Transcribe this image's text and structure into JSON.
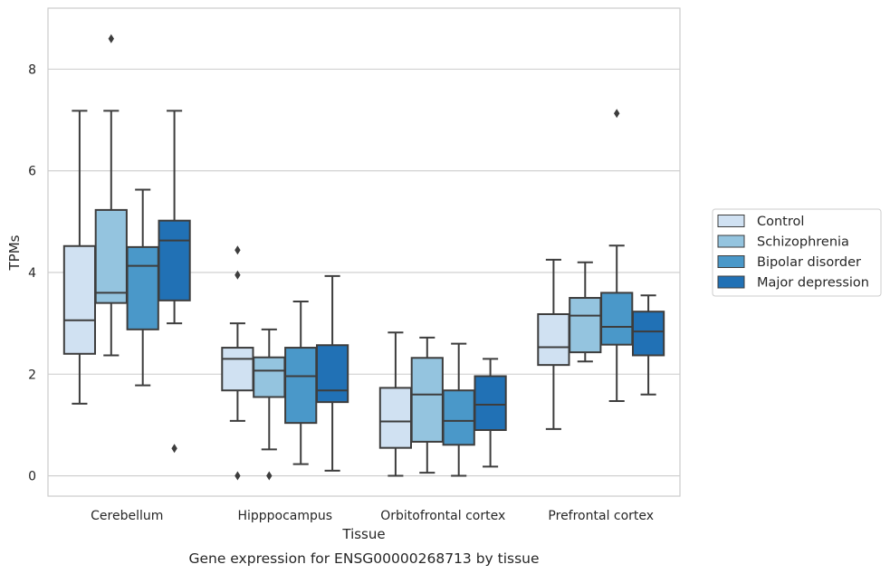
{
  "chart_data": {
    "type": "box",
    "title": "",
    "caption": "Gene expression for ENSG00000268713 by tissue",
    "xlabel": "Tissue",
    "ylabel": "TPMs",
    "ylim": [
      -0.4,
      9.2
    ],
    "yticks": [
      0,
      2,
      4,
      6,
      8
    ],
    "grid": "horizontal",
    "legend_position": "right",
    "categories": [
      "Cerebellum",
      "Hipppocampus",
      "Orbitofrontal cortex",
      "Prefrontal cortex"
    ],
    "series": [
      {
        "name": "Control",
        "color": "#d0e1f2",
        "boxes": [
          {
            "whisker_low": 1.42,
            "q1": 2.4,
            "median": 3.06,
            "q3": 4.52,
            "whisker_high": 7.18,
            "outliers": []
          },
          {
            "whisker_low": 1.08,
            "q1": 1.68,
            "median": 2.3,
            "q3": 2.52,
            "whisker_high": 3.0,
            "outliers": [
              4.44,
              3.95,
              0.0
            ]
          },
          {
            "whisker_low": 0.0,
            "q1": 0.55,
            "median": 1.07,
            "q3": 1.73,
            "whisker_high": 2.82,
            "outliers": []
          },
          {
            "whisker_low": 0.92,
            "q1": 2.18,
            "median": 2.53,
            "q3": 3.18,
            "whisker_high": 4.25,
            "outliers": []
          }
        ]
      },
      {
        "name": "Schizophrenia",
        "color": "#94c4df",
        "boxes": [
          {
            "whisker_low": 2.37,
            "q1": 3.4,
            "median": 3.6,
            "q3": 5.23,
            "whisker_high": 7.18,
            "outliers": [
              8.6
            ]
          },
          {
            "whisker_low": 0.52,
            "q1": 1.55,
            "median": 2.07,
            "q3": 2.33,
            "whisker_high": 2.88,
            "outliers": [
              0.0
            ]
          },
          {
            "whisker_low": 0.06,
            "q1": 0.67,
            "median": 1.6,
            "q3": 2.32,
            "whisker_high": 2.72,
            "outliers": []
          },
          {
            "whisker_low": 2.25,
            "q1": 2.43,
            "median": 3.15,
            "q3": 3.5,
            "whisker_high": 4.2,
            "outliers": []
          }
        ]
      },
      {
        "name": "Bipolar disorder",
        "color": "#4a98c9",
        "boxes": [
          {
            "whisker_low": 1.78,
            "q1": 2.88,
            "median": 4.13,
            "q3": 4.5,
            "whisker_high": 5.63,
            "outliers": []
          },
          {
            "whisker_low": 0.23,
            "q1": 1.04,
            "median": 1.96,
            "q3": 2.52,
            "whisker_high": 3.43,
            "outliers": []
          },
          {
            "whisker_low": 0.0,
            "q1": 0.61,
            "median": 1.08,
            "q3": 1.68,
            "whisker_high": 2.6,
            "outliers": []
          },
          {
            "whisker_low": 1.47,
            "q1": 2.58,
            "median": 2.93,
            "q3": 3.6,
            "whisker_high": 4.53,
            "outliers": [
              7.13
            ]
          }
        ]
      },
      {
        "name": "Major depression",
        "color": "#2171b5",
        "boxes": [
          {
            "whisker_low": 3.0,
            "q1": 3.45,
            "median": 4.63,
            "q3": 5.02,
            "whisker_high": 7.18,
            "outliers": [
              0.54
            ]
          },
          {
            "whisker_low": 0.1,
            "q1": 1.45,
            "median": 1.68,
            "q3": 2.57,
            "whisker_high": 3.93,
            "outliers": []
          },
          {
            "whisker_low": 0.18,
            "q1": 0.9,
            "median": 1.4,
            "q3": 1.96,
            "whisker_high": 2.3,
            "outliers": []
          },
          {
            "whisker_low": 1.6,
            "q1": 2.37,
            "median": 2.84,
            "q3": 3.23,
            "whisker_high": 3.55,
            "outliers": []
          }
        ]
      }
    ]
  }
}
